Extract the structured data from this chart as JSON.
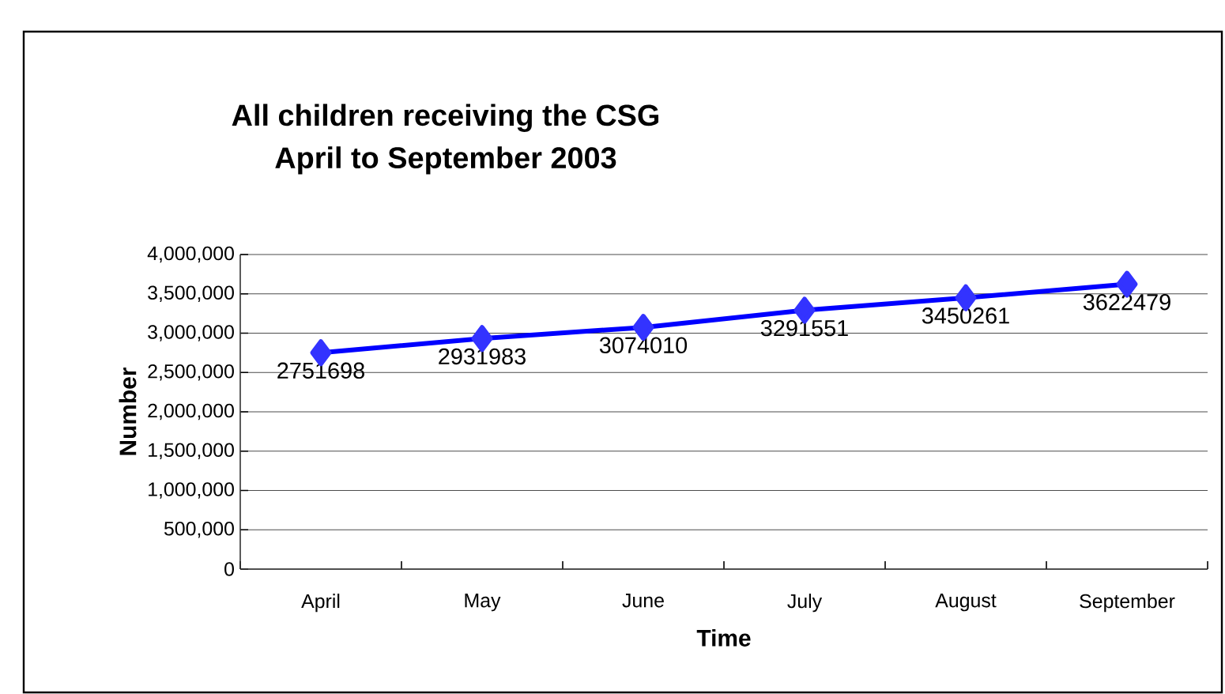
{
  "chart_data": {
    "type": "line",
    "title": "All children receiving the CSG\nApril to September 2003",
    "xlabel": "Time",
    "ylabel": "Number",
    "categories": [
      "April",
      "May",
      "June",
      "July",
      "August",
      "September"
    ],
    "series": [
      {
        "color": "#0000ff",
        "values": [
          2751698,
          2931983,
          3074010,
          3291551,
          3450261,
          3622479
        ]
      }
    ],
    "ylim": [
      0,
      4000000
    ],
    "yticks": [
      {
        "value": 0,
        "label": "0"
      },
      {
        "value": 500000,
        "label": "500,000"
      },
      {
        "value": 1000000,
        "label": "1,000,000"
      },
      {
        "value": 1500000,
        "label": "1,500,000"
      },
      {
        "value": 2000000,
        "label": "2,000,000"
      },
      {
        "value": 2500000,
        "label": "2,500,000"
      },
      {
        "value": 3000000,
        "label": "3,000,000"
      },
      {
        "value": 3500000,
        "label": "3,500,000"
      },
      {
        "value": 4000000,
        "label": "4,000,000"
      }
    ],
    "grid": "y",
    "marker": "diamond",
    "line_style": "solid",
    "data_labels": true
  }
}
